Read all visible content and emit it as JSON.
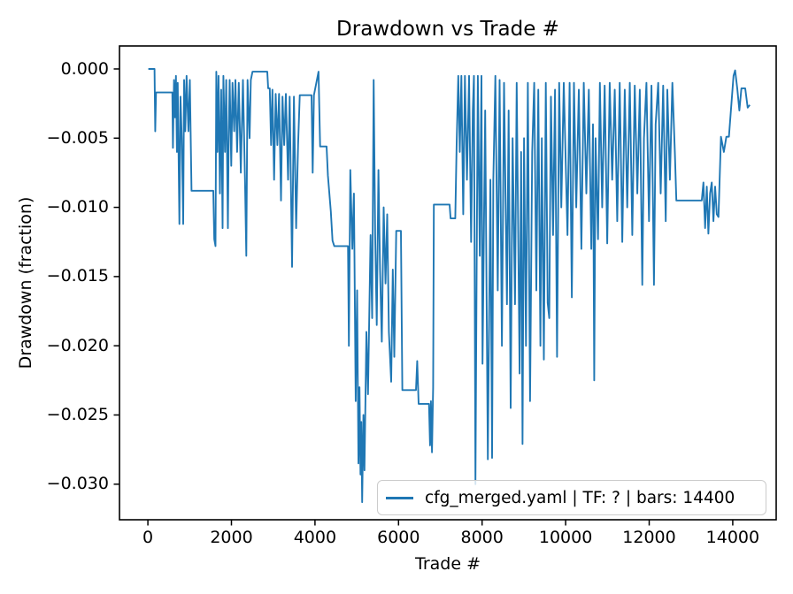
{
  "chart_data": {
    "type": "line",
    "title": "Drawdown vs Trade #",
    "xlabel": "Trade #",
    "ylabel": "Drawdown (fraction)",
    "grid": false,
    "legend_position": "lower center-right inside axes",
    "xlim": [
      -680,
      15040
    ],
    "ylim": [
      -0.03257,
      0.00166
    ],
    "x_ticks": [
      0,
      2000,
      4000,
      6000,
      8000,
      10000,
      12000,
      14000
    ],
    "x_tick_labels": [
      "0",
      "2000",
      "4000",
      "6000",
      "8000",
      "10000",
      "12000",
      "14000"
    ],
    "y_ticks": [
      0,
      -0.005,
      -0.01,
      -0.015,
      -0.02,
      -0.025,
      -0.03
    ],
    "y_tick_labels": [
      "0.000",
      "−0.005",
      "−0.010",
      "−0.015",
      "−0.020",
      "−0.025",
      "−0.030"
    ],
    "axis_color": "#000000",
    "series": [
      {
        "name": "cfg_merged.yaml | TF: ? | bars: 14400",
        "color": "#1f77b4",
        "points": [
          [
            10,
            0
          ],
          [
            160,
            0
          ],
          [
            175,
            -0.0045
          ],
          [
            195,
            -0.0017
          ],
          [
            585,
            -0.0017
          ],
          [
            600,
            -0.0057
          ],
          [
            625,
            -0.0008
          ],
          [
            650,
            -0.0035
          ],
          [
            672,
            -0.0005
          ],
          [
            695,
            -0.006
          ],
          [
            715,
            -0.001
          ],
          [
            755,
            -0.0112
          ],
          [
            780,
            -0.002
          ],
          [
            812,
            -0.005
          ],
          [
            845,
            -0.0112
          ],
          [
            866,
            -0.0008
          ],
          [
            895,
            -0.0045
          ],
          [
            925,
            -0.0005
          ],
          [
            970,
            -0.0045
          ],
          [
            1005,
            -0.0008
          ],
          [
            1045,
            -0.0088
          ],
          [
            1565,
            -0.0088
          ],
          [
            1590,
            -0.0123
          ],
          [
            1618,
            -0.0128
          ],
          [
            1638,
            -0.0002
          ],
          [
            1665,
            -0.006
          ],
          [
            1690,
            -0.0005
          ],
          [
            1725,
            -0.009
          ],
          [
            1755,
            -0.0015
          ],
          [
            1788,
            -0.0115
          ],
          [
            1808,
            -0.0005
          ],
          [
            1845,
            -0.006
          ],
          [
            1875,
            -0.0008
          ],
          [
            1915,
            -0.0115
          ],
          [
            1935,
            -0.005
          ],
          [
            1958,
            -0.0008
          ],
          [
            1995,
            -0.007
          ],
          [
            2025,
            -0.001
          ],
          [
            2065,
            -0.0045
          ],
          [
            2095,
            -0.0008
          ],
          [
            2135,
            -0.006
          ],
          [
            2175,
            -0.001
          ],
          [
            2225,
            -0.0075
          ],
          [
            2275,
            -0.0008
          ],
          [
            2325,
            -0.008
          ],
          [
            2356,
            -0.0135
          ],
          [
            2386,
            -0.0008
          ],
          [
            2435,
            -0.005
          ],
          [
            2465,
            -0.0008
          ],
          [
            2505,
            -0.0002
          ],
          [
            2858,
            -0.0002
          ],
          [
            2880,
            -0.0014
          ],
          [
            2918,
            -0.0014
          ],
          [
            2950,
            -0.0055
          ],
          [
            2980,
            -0.0015
          ],
          [
            3022,
            -0.008
          ],
          [
            3060,
            -0.0018
          ],
          [
            3100,
            -0.0055
          ],
          [
            3140,
            -0.0018
          ],
          [
            3186,
            -0.0095
          ],
          [
            3222,
            -0.002
          ],
          [
            3262,
            -0.0055
          ],
          [
            3302,
            -0.0018
          ],
          [
            3355,
            -0.008
          ],
          [
            3395,
            -0.002
          ],
          [
            3452,
            -0.0143
          ],
          [
            3495,
            -0.002
          ],
          [
            3548,
            -0.0115
          ],
          [
            3595,
            -0.0055
          ],
          [
            3635,
            -0.0019
          ],
          [
            3918,
            -0.0019
          ],
          [
            3945,
            -0.0075
          ],
          [
            3975,
            -0.0019
          ],
          [
            4085,
            -0.0002
          ],
          [
            4122,
            -0.0056
          ],
          [
            4278,
            -0.0056
          ],
          [
            4310,
            -0.0077
          ],
          [
            4380,
            -0.0103
          ],
          [
            4420,
            -0.0124
          ],
          [
            4462,
            -0.0128
          ],
          [
            4790,
            -0.0128
          ],
          [
            4812,
            -0.02
          ],
          [
            4845,
            -0.0073
          ],
          [
            4895,
            -0.013
          ],
          [
            4932,
            -0.009
          ],
          [
            4975,
            -0.024
          ],
          [
            5008,
            -0.016
          ],
          [
            5040,
            -0.0285
          ],
          [
            5065,
            -0.023
          ],
          [
            5088,
            -0.0293
          ],
          [
            5108,
            -0.0255
          ],
          [
            5130,
            -0.0313
          ],
          [
            5158,
            -0.025
          ],
          [
            5185,
            -0.029
          ],
          [
            5230,
            -0.019
          ],
          [
            5268,
            -0.0235
          ],
          [
            5330,
            -0.012
          ],
          [
            5368,
            -0.018
          ],
          [
            5405,
            -0.0008
          ],
          [
            5440,
            -0.012
          ],
          [
            5478,
            -0.0185
          ],
          [
            5518,
            -0.0073
          ],
          [
            5558,
            -0.0145
          ],
          [
            5600,
            -0.0197
          ],
          [
            5645,
            -0.01
          ],
          [
            5688,
            -0.0155
          ],
          [
            5728,
            -0.0105
          ],
          [
            5768,
            -0.019
          ],
          [
            5825,
            -0.0226
          ],
          [
            5862,
            -0.0145
          ],
          [
            5898,
            -0.0208
          ],
          [
            5945,
            -0.0117
          ],
          [
            6058,
            -0.0117
          ],
          [
            6090,
            -0.0232
          ],
          [
            6418,
            -0.0232
          ],
          [
            6448,
            -0.0211
          ],
          [
            6480,
            -0.0242
          ],
          [
            6728,
            -0.0242
          ],
          [
            6755,
            -0.0272
          ],
          [
            6775,
            -0.024
          ],
          [
            6800,
            -0.0277
          ],
          [
            6828,
            -0.023
          ],
          [
            6845,
            -0.0098
          ],
          [
            7222,
            -0.0098
          ],
          [
            7245,
            -0.0108
          ],
          [
            7358,
            -0.0108
          ],
          [
            7390,
            -0.0056
          ],
          [
            7430,
            -0.0005
          ],
          [
            7465,
            -0.006
          ],
          [
            7505,
            -0.0005
          ],
          [
            7548,
            -0.0105
          ],
          [
            7588,
            -0.0005
          ],
          [
            7638,
            -0.008
          ],
          [
            7688,
            -0.0005
          ],
          [
            7738,
            -0.0125
          ],
          [
            7778,
            -0.003
          ],
          [
            7805,
            -0.0005
          ],
          [
            7840,
            -0.03
          ],
          [
            7868,
            -0.015
          ],
          [
            7898,
            -0.0005
          ],
          [
            7945,
            -0.0135
          ],
          [
            7985,
            -0.0005
          ],
          [
            8010,
            -0.0213
          ],
          [
            8075,
            -0.003
          ],
          [
            8138,
            -0.0282
          ],
          [
            8198,
            -0.008
          ],
          [
            8240,
            -0.0281
          ],
          [
            8270,
            -0.008
          ],
          [
            8318,
            -0.0005
          ],
          [
            8375,
            -0.016
          ],
          [
            8420,
            -0.0008
          ],
          [
            8475,
            -0.02
          ],
          [
            8525,
            -0.001
          ],
          [
            8595,
            -0.017
          ],
          [
            8635,
            -0.003
          ],
          [
            8685,
            -0.0245
          ],
          [
            8730,
            -0.005
          ],
          [
            8788,
            -0.017
          ],
          [
            8828,
            -0.001
          ],
          [
            8898,
            -0.022
          ],
          [
            8935,
            -0.006
          ],
          [
            8968,
            -0.0271
          ],
          [
            9005,
            -0.005
          ],
          [
            9050,
            -0.02
          ],
          [
            9095,
            -0.001
          ],
          [
            9148,
            -0.024
          ],
          [
            9198,
            -0.006
          ],
          [
            9248,
            -0.001
          ],
          [
            9298,
            -0.016
          ],
          [
            9345,
            -0.0015
          ],
          [
            9395,
            -0.02
          ],
          [
            9430,
            -0.005
          ],
          [
            9478,
            -0.021
          ],
          [
            9525,
            -0.001
          ],
          [
            9570,
            -0.0169
          ],
          [
            9608,
            -0.018
          ],
          [
            9648,
            -0.002
          ],
          [
            9698,
            -0.012
          ],
          [
            9745,
            -0.0015
          ],
          [
            9795,
            -0.0208
          ],
          [
            9845,
            -0.001
          ],
          [
            9895,
            -0.01
          ],
          [
            9955,
            -0.001
          ],
          [
            10045,
            -0.012
          ],
          [
            10095,
            -0.001
          ],
          [
            10148,
            -0.0165
          ],
          [
            10198,
            -0.001
          ],
          [
            10255,
            -0.01
          ],
          [
            10315,
            -0.0015
          ],
          [
            10378,
            -0.013
          ],
          [
            10435,
            -0.001
          ],
          [
            10495,
            -0.009
          ],
          [
            10555,
            -0.0015
          ],
          [
            10615,
            -0.013
          ],
          [
            10655,
            -0.004
          ],
          [
            10685,
            -0.0225
          ],
          [
            10715,
            -0.005
          ],
          [
            10775,
            -0.0123
          ],
          [
            10820,
            -0.001
          ],
          [
            10875,
            -0.01
          ],
          [
            10935,
            -0.0012
          ],
          [
            10995,
            -0.0126
          ],
          [
            11055,
            -0.001
          ],
          [
            11115,
            -0.008
          ],
          [
            11175,
            -0.0015
          ],
          [
            11235,
            -0.011
          ],
          [
            11295,
            -0.001
          ],
          [
            11355,
            -0.0125
          ],
          [
            11415,
            -0.0015
          ],
          [
            11475,
            -0.01
          ],
          [
            11535,
            -0.001
          ],
          [
            11595,
            -0.012
          ],
          [
            11655,
            -0.0012
          ],
          [
            11715,
            -0.009
          ],
          [
            11775,
            -0.0015
          ],
          [
            11835,
            -0.0156
          ],
          [
            11875,
            -0.005
          ],
          [
            11935,
            -0.001
          ],
          [
            11995,
            -0.011
          ],
          [
            12055,
            -0.0012
          ],
          [
            12115,
            -0.0156
          ],
          [
            12155,
            -0.004
          ],
          [
            12215,
            -0.001
          ],
          [
            12275,
            -0.009
          ],
          [
            12335,
            -0.0012
          ],
          [
            12395,
            -0.011
          ],
          [
            12435,
            -0.0015
          ],
          [
            12495,
            -0.008
          ],
          [
            12555,
            -0.001
          ],
          [
            12615,
            -0.006
          ],
          [
            12650,
            -0.0095
          ],
          [
            13258,
            -0.0095
          ],
          [
            13298,
            -0.0082
          ],
          [
            13338,
            -0.0115
          ],
          [
            13378,
            -0.0085
          ],
          [
            13418,
            -0.0119
          ],
          [
            13458,
            -0.009
          ],
          [
            13498,
            -0.0082
          ],
          [
            13538,
            -0.011
          ],
          [
            13578,
            -0.0085
          ],
          [
            13618,
            -0.0105
          ],
          [
            13658,
            -0.0107
          ],
          [
            13718,
            -0.0049
          ],
          [
            13788,
            -0.006
          ],
          [
            13848,
            -0.0049
          ],
          [
            13908,
            -0.0049
          ],
          [
            14018,
            -0.0005
          ],
          [
            14058,
            -0.0001
          ],
          [
            14108,
            -0.0014
          ],
          [
            14158,
            -0.003
          ],
          [
            14208,
            -0.0014
          ],
          [
            14298,
            -0.0014
          ],
          [
            14358,
            -0.0028
          ],
          [
            14408,
            -0.0026
          ]
        ]
      }
    ]
  }
}
